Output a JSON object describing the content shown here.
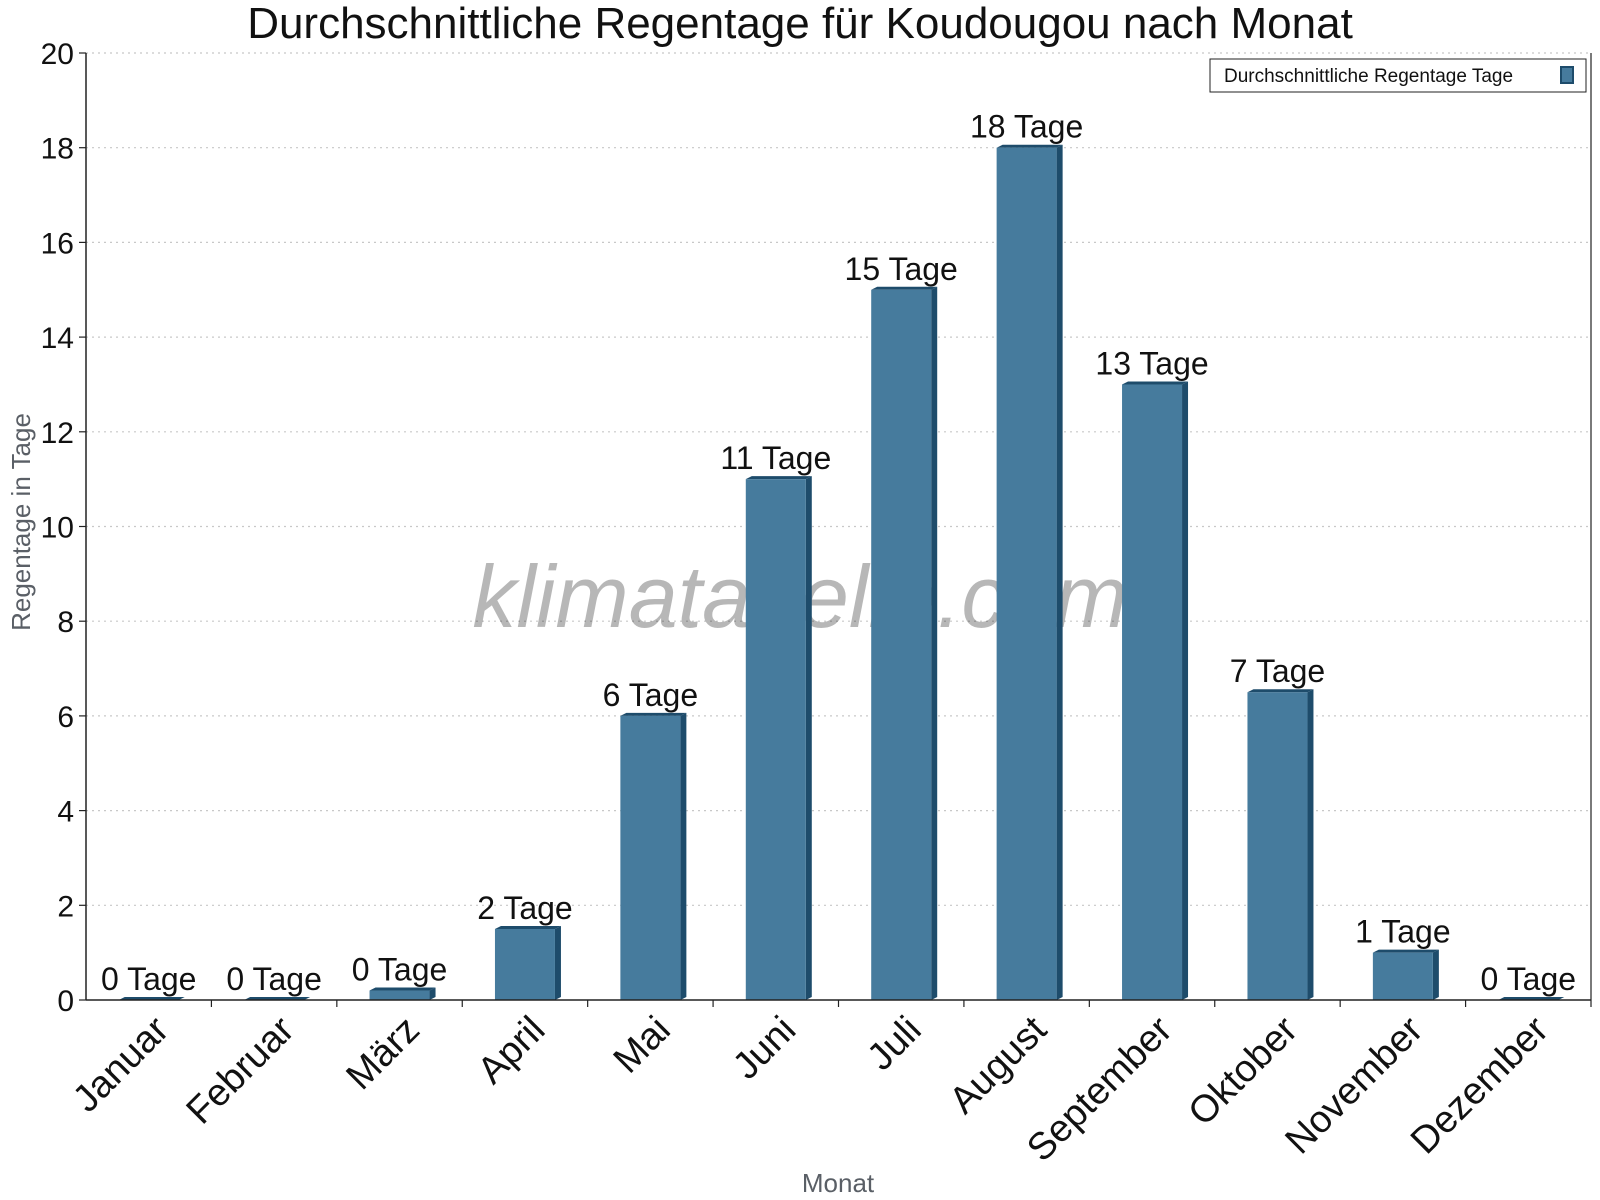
{
  "chart_data": {
    "type": "bar",
    "title": "Durchschnittliche Regentage für Koudougou nach Monat",
    "xlabel": "Monat",
    "ylabel": "Regentage in Tage",
    "ylim": [
      0,
      20
    ],
    "yticks": [
      0,
      2,
      4,
      6,
      8,
      10,
      12,
      14,
      16,
      18,
      20
    ],
    "grid": true,
    "legend_position": "top-right",
    "categories": [
      "Januar",
      "Februar",
      "März",
      "April",
      "Mai",
      "Juni",
      "Juli",
      "August",
      "September",
      "Oktober",
      "November",
      "Dezember"
    ],
    "series": [
      {
        "name": "Durchschnittliche Regentage Tage",
        "values": [
          0,
          0,
          0.2,
          1.5,
          6,
          11,
          15,
          18,
          13,
          6.5,
          1,
          0
        ],
        "data_labels": [
          "0 Tage",
          "0 Tage",
          "0 Tage",
          "2 Tage",
          "6 Tage",
          "11 Tage",
          "15 Tage",
          "18 Tage",
          "13 Tage",
          "7 Tage",
          "1 Tage",
          "0 Tage"
        ]
      }
    ],
    "bar_color": "#467b9d",
    "bar_shade_color": "#1e4c6b",
    "watermark": "klimatabelle.com"
  }
}
